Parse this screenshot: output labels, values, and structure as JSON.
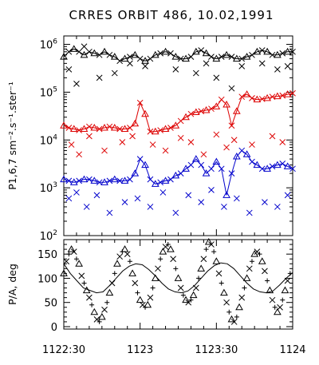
{
  "chart_data": [
    {
      "type": "scatter",
      "title": "CRRES ORBIT 486, 10.02,1991",
      "ylabel": "P1,6,7 sm⁻².s⁻¹.ster⁻¹",
      "yscale": "log",
      "ylim": [
        100,
        1500000
      ],
      "xlim": [
        0,
        90
      ],
      "yticks": [
        {
          "base": "10",
          "exp": "2",
          "value": 100
        },
        {
          "base": "10",
          "exp": "3",
          "value": 1000
        },
        {
          "base": "10",
          "exp": "4",
          "value": 10000
        },
        {
          "base": "10",
          "exp": "5",
          "value": 100000
        },
        {
          "base": "10",
          "exp": "6",
          "value": 1000000
        }
      ],
      "series": [
        {
          "color": "#000000",
          "line": [
            550000,
            700000,
            800000,
            700000,
            600000,
            700000,
            650000,
            600000,
            700000,
            600000,
            550000,
            450000,
            500000,
            550000,
            600000,
            500000,
            450000,
            500000,
            600000,
            650000,
            700000,
            650000,
            550000,
            500000,
            500000,
            550000,
            700000,
            750000,
            650000,
            550000,
            500000,
            550000,
            600000,
            550000,
            500000,
            500000,
            550000,
            600000,
            700000,
            750000,
            700000,
            600000,
            600000,
            650000,
            700000,
            700000
          ],
          "scatter": [
            [
              2,
              300000
            ],
            [
              5,
              150000
            ],
            [
              8,
              900000
            ],
            [
              14,
              200000
            ],
            [
              20,
              250000
            ],
            [
              26,
              400000
            ],
            [
              32,
              350000
            ],
            [
              44,
              300000
            ],
            [
              52,
              250000
            ],
            [
              56,
              400000
            ],
            [
              60,
              200000
            ],
            [
              66,
              120000
            ],
            [
              70,
              350000
            ],
            [
              78,
              400000
            ],
            [
              84,
              300000
            ],
            [
              88,
              350000
            ]
          ]
        },
        {
          "color": "#dd0000",
          "line": [
            20000,
            18000,
            17000,
            16000,
            17000,
            19000,
            18000,
            17000,
            18000,
            19000,
            18000,
            17000,
            17000,
            18000,
            22000,
            60000,
            35000,
            15000,
            15000,
            16000,
            17000,
            18000,
            20000,
            25000,
            30000,
            35000,
            38000,
            40000,
            42000,
            45000,
            50000,
            70000,
            55000,
            20000,
            40000,
            80000,
            90000,
            75000,
            70000,
            72000,
            75000,
            80000,
            82000,
            85000,
            90000,
            95000
          ],
          "scatter": [
            [
              3,
              8000
            ],
            [
              6,
              5000
            ],
            [
              10,
              12000
            ],
            [
              16,
              6000
            ],
            [
              23,
              9000
            ],
            [
              27,
              12000
            ],
            [
              35,
              8000
            ],
            [
              40,
              6000
            ],
            [
              46,
              11000
            ],
            [
              50,
              9000
            ],
            [
              55,
              5000
            ],
            [
              60,
              13000
            ],
            [
              64,
              7000
            ],
            [
              67,
              10000
            ],
            [
              74,
              8000
            ],
            [
              82,
              12000
            ],
            [
              86,
              9000
            ]
          ]
        },
        {
          "color": "#0000cc",
          "line": [
            1500,
            1400,
            1300,
            1400,
            1500,
            1500,
            1400,
            1300,
            1300,
            1400,
            1500,
            1400,
            1400,
            1500,
            2000,
            4000,
            3000,
            1500,
            1200,
            1300,
            1400,
            1500,
            1800,
            2000,
            2500,
            3000,
            4000,
            3000,
            2000,
            2500,
            3500,
            2500,
            700,
            2000,
            4500,
            6000,
            5000,
            3500,
            3000,
            2500,
            2500,
            2800,
            3000,
            3200,
            2800,
            2500
          ],
          "scatter": [
            [
              2,
              600
            ],
            [
              5,
              800
            ],
            [
              9,
              400
            ],
            [
              13,
              700
            ],
            [
              18,
              300
            ],
            [
              24,
              500
            ],
            [
              29,
              600
            ],
            [
              34,
              400
            ],
            [
              39,
              800
            ],
            [
              44,
              300
            ],
            [
              49,
              700
            ],
            [
              54,
              500
            ],
            [
              58,
              900
            ],
            [
              63,
              400
            ],
            [
              68,
              600
            ],
            [
              73,
              300
            ],
            [
              79,
              500
            ],
            [
              84,
              400
            ],
            [
              88,
              700
            ]
          ]
        }
      ]
    },
    {
      "type": "scatter",
      "ylabel": "P/A, deg",
      "ylim": [
        -5,
        180
      ],
      "xlim": [
        0,
        90
      ],
      "yticks": [
        0,
        50,
        100,
        150
      ],
      "xticks": [
        {
          "label": "1122:30",
          "value": 0
        },
        {
          "label": "1123",
          "value": 30
        },
        {
          "label": "1123:30",
          "value": 60
        },
        {
          "label": "1124",
          "value": 90
        }
      ],
      "series": [
        {
          "color": "#000000",
          "points": [
            [
              0,
              110
            ],
            [
              1,
              135
            ],
            [
              2,
              150
            ],
            [
              3,
              160
            ],
            [
              4,
              155
            ],
            [
              5,
              140
            ],
            [
              6,
              130
            ],
            [
              7,
              105
            ],
            [
              8,
              90
            ],
            [
              9,
              75
            ],
            [
              10,
              60
            ],
            [
              11,
              45
            ],
            [
              12,
              30
            ],
            [
              13,
              15
            ],
            [
              14,
              10
            ],
            [
              15,
              20
            ],
            [
              16,
              35
            ],
            [
              17,
              50
            ],
            [
              18,
              70
            ],
            [
              19,
              90
            ],
            [
              20,
              110
            ],
            [
              21,
              130
            ],
            [
              22,
              145
            ],
            [
              23,
              155
            ],
            [
              24,
              160
            ],
            [
              25,
              150
            ],
            [
              26,
              135
            ],
            [
              27,
              110
            ],
            [
              28,
              90
            ],
            [
              29,
              70
            ],
            [
              30,
              55
            ],
            [
              31,
              45
            ],
            [
              32,
              40
            ],
            [
              33,
              45
            ],
            [
              34,
              60
            ],
            [
              35,
              80
            ],
            [
              36,
              100
            ],
            [
              37,
              120
            ],
            [
              38,
              140
            ],
            [
              39,
              155
            ],
            [
              40,
              165
            ],
            [
              41,
              170
            ],
            [
              42,
              160
            ],
            [
              43,
              140
            ],
            [
              44,
              120
            ],
            [
              45,
              100
            ],
            [
              46,
              80
            ],
            [
              47,
              65
            ],
            [
              48,
              55
            ],
            [
              49,
              50
            ],
            [
              50,
              55
            ],
            [
              51,
              65
            ],
            [
              52,
              80
            ],
            [
              53,
              100
            ],
            [
              54,
              120
            ],
            [
              55,
              140
            ],
            [
              56,
              160
            ],
            [
              57,
              175
            ],
            [
              58,
              170
            ],
            [
              59,
              155
            ],
            [
              60,
              135
            ],
            [
              61,
              110
            ],
            [
              62,
              90
            ],
            [
              63,
              70
            ],
            [
              64,
              50
            ],
            [
              65,
              30
            ],
            [
              66,
              15
            ],
            [
              67,
              10
            ],
            [
              68,
              20
            ],
            [
              69,
              40
            ],
            [
              70,
              60
            ],
            [
              71,
              80
            ],
            [
              72,
              100
            ],
            [
              73,
              120
            ],
            [
              74,
              135
            ],
            [
              75,
              150
            ],
            [
              76,
              155
            ],
            [
              77,
              150
            ],
            [
              78,
              135
            ],
            [
              79,
              115
            ],
            [
              80,
              95
            ],
            [
              81,
              75
            ],
            [
              82,
              55
            ],
            [
              83,
              40
            ],
            [
              84,
              30
            ],
            [
              85,
              40
            ],
            [
              86,
              55
            ],
            [
              87,
              75
            ],
            [
              88,
              95
            ],
            [
              89,
              110
            ]
          ],
          "line": [
            130,
            110,
            95,
            80,
            75,
            70,
            72,
            85,
            100,
            115,
            125,
            130,
            128,
            118,
            105,
            90,
            78,
            72,
            70,
            74,
            85,
            100,
            115,
            126,
            132,
            130,
            120,
            105,
            90,
            78,
            72,
            70,
            74,
            86,
            100,
            112
          ]
        }
      ]
    }
  ]
}
